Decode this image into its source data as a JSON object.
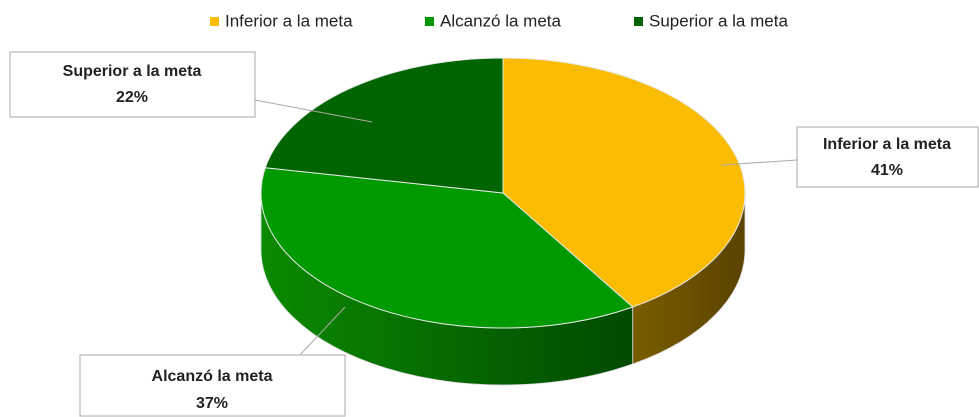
{
  "chart_data": {
    "type": "pie",
    "categories": [
      "Inferior a la meta",
      "Alcanzó la meta",
      "Superior a la meta"
    ],
    "values": [
      41,
      37,
      22
    ],
    "value_labels": [
      "41%",
      "37%",
      "22%"
    ],
    "colors": [
      "#f9bc00",
      "#009a00",
      "#006400"
    ],
    "legend": "top"
  }
}
